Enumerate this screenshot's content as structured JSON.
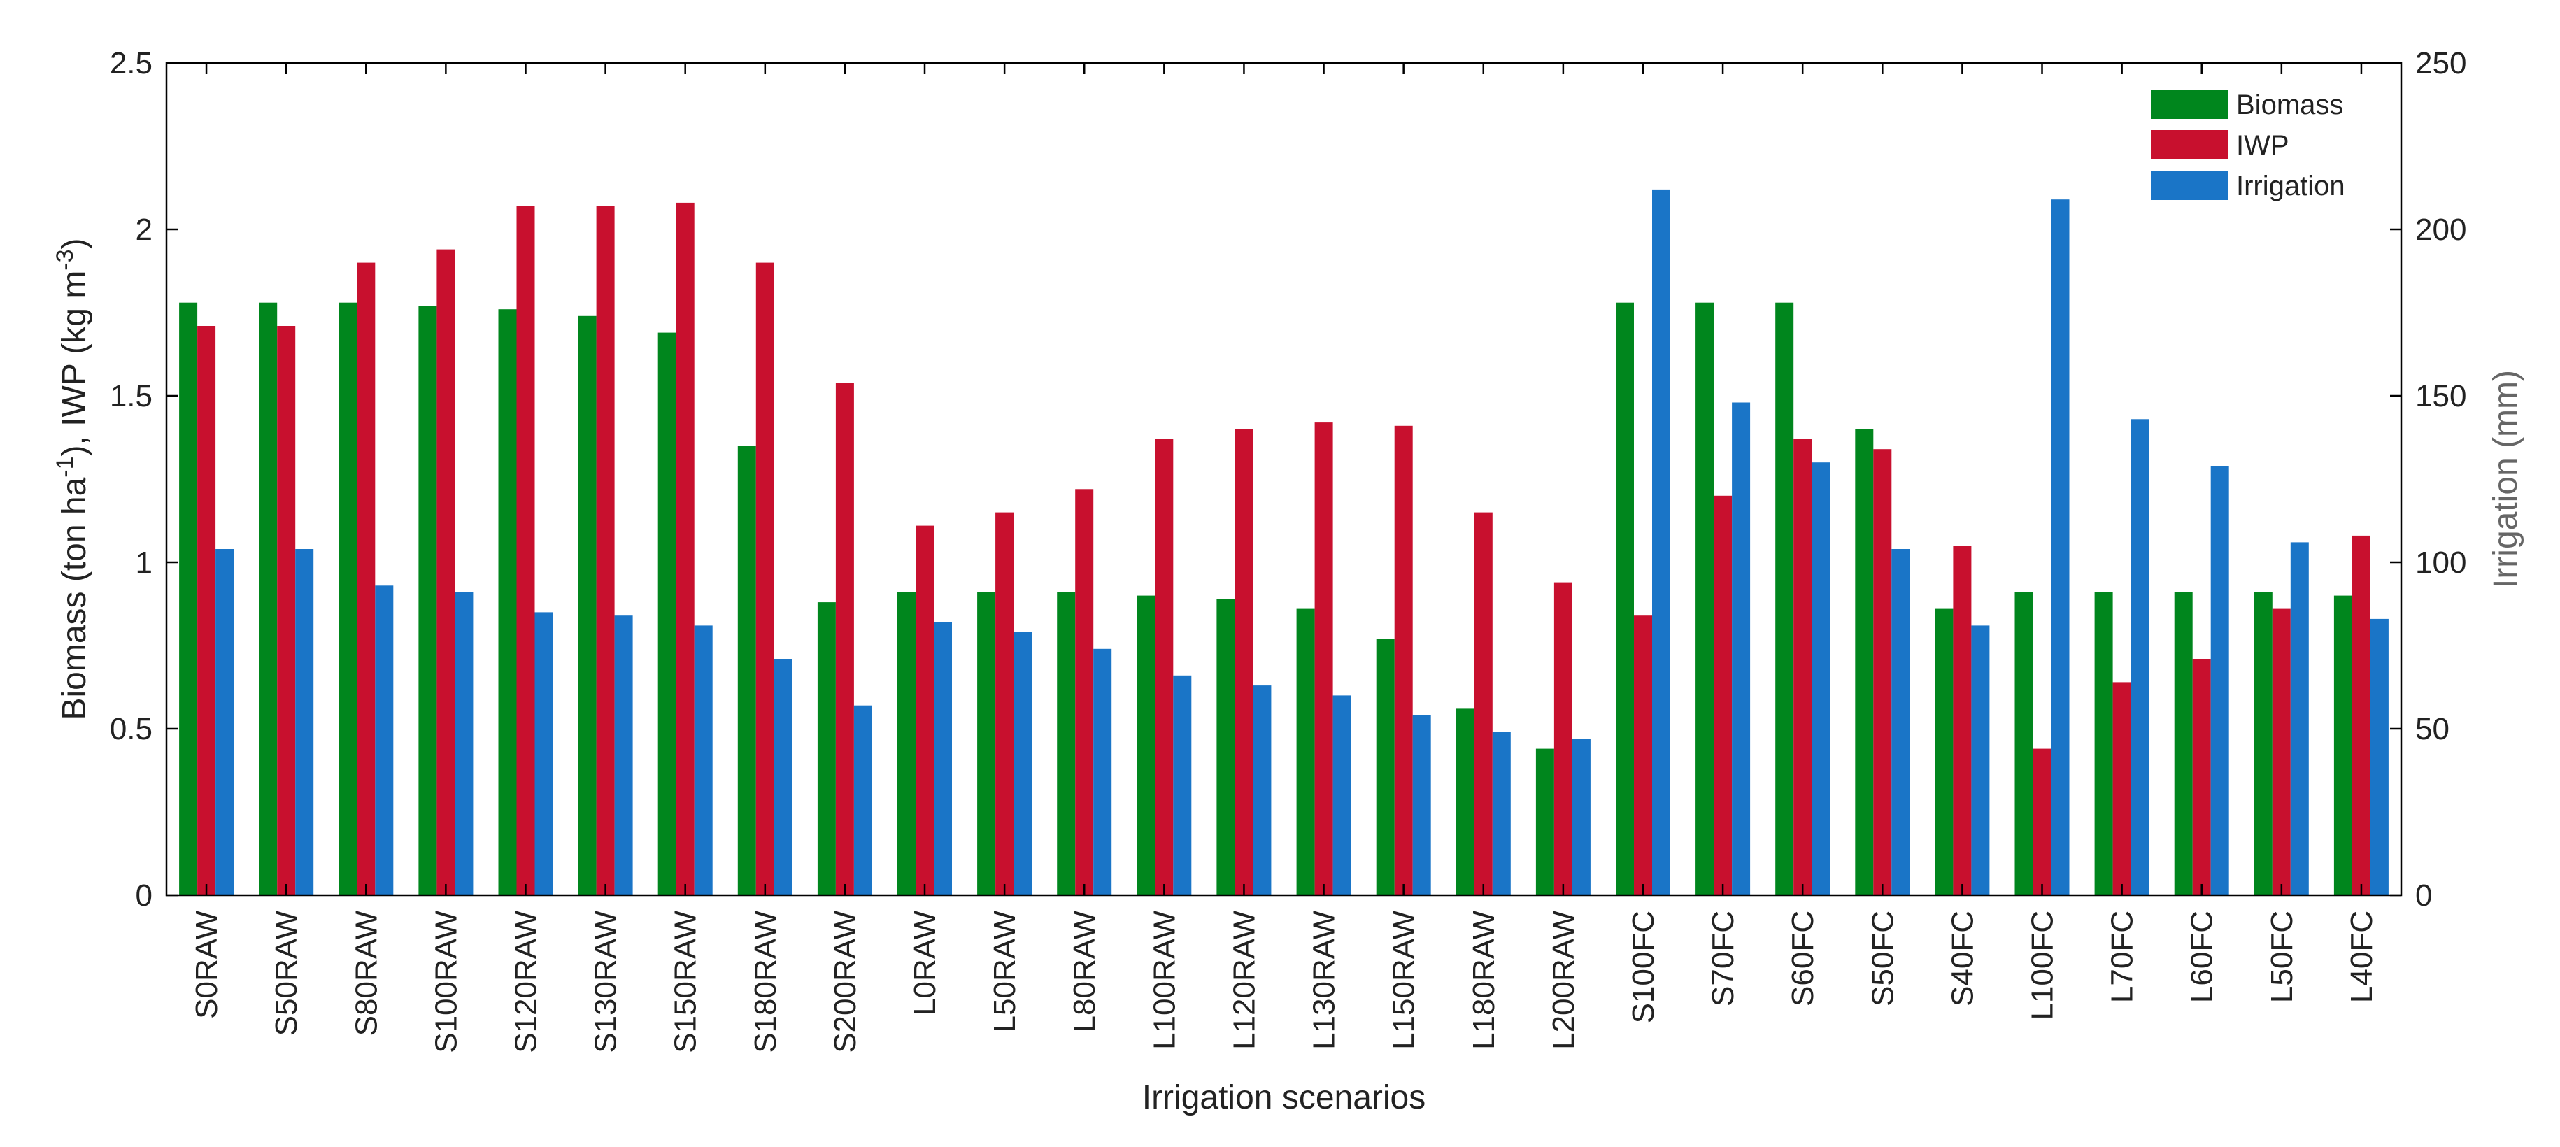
{
  "chart_data": {
    "type": "bar",
    "xlabel": "Irrigation scenarios",
    "ylabel_left": "Biomass (ton ha",
    "ylabel_left_sup1": "-1",
    "ylabel_left_mid": "), IWP (kg m",
    "ylabel_left_sup2": "-3",
    "ylabel_left_end": ")",
    "ylabel_right": "Irrigation (mm)",
    "ylim_left": [
      0,
      2.5
    ],
    "ylim_right": [
      0,
      250
    ],
    "yticks_left": [
      "0",
      "0.5",
      "1",
      "1.5",
      "2",
      "2.5"
    ],
    "yticks_right": [
      "0",
      "50",
      "100",
      "150",
      "200",
      "250"
    ],
    "legend_position": "top-right",
    "grid": false,
    "categories": [
      "S0RAW",
      "S50RAW",
      "S80RAW",
      "S100RAW",
      "S120RAW",
      "S130RAW",
      "S150RAW",
      "S180RAW",
      "S200RAW",
      "L0RAW",
      "L50RAW",
      "L80RAW",
      "L100RAW",
      "L120RAW",
      "L130RAW",
      "L150RAW",
      "L180RAW",
      "L200RAW",
      "S100FC",
      "S70FC",
      "S60FC",
      "S50FC",
      "S40FC",
      "L100FC",
      "L70FC",
      "L60FC",
      "L50FC",
      "L40FC"
    ],
    "series": [
      {
        "name": "Biomass",
        "axis": "left",
        "color": "#00861d",
        "values": [
          1.78,
          1.78,
          1.78,
          1.77,
          1.76,
          1.74,
          1.69,
          1.35,
          0.88,
          0.91,
          0.91,
          0.91,
          0.9,
          0.89,
          0.86,
          0.77,
          0.56,
          0.44,
          1.78,
          1.78,
          1.78,
          1.4,
          0.86,
          0.91,
          0.91,
          0.91,
          0.91,
          0.9
        ]
      },
      {
        "name": "IWP",
        "axis": "left",
        "color": "#c8102e",
        "values": [
          1.71,
          1.71,
          1.9,
          1.94,
          2.07,
          2.07,
          2.08,
          1.9,
          1.54,
          1.11,
          1.15,
          1.22,
          1.37,
          1.4,
          1.42,
          1.41,
          1.15,
          0.94,
          0.84,
          1.2,
          1.37,
          1.34,
          1.05,
          0.44,
          0.64,
          0.71,
          0.86,
          1.08
        ]
      },
      {
        "name": "Irrigation",
        "axis": "right",
        "color": "#1a75c7",
        "values": [
          104,
          104,
          93,
          91,
          85,
          84,
          81,
          71,
          57,
          82,
          79,
          74,
          66,
          63,
          60,
          54,
          49,
          47,
          212,
          148,
          130,
          104,
          81,
          209,
          143,
          129,
          106,
          83
        ]
      }
    ]
  }
}
